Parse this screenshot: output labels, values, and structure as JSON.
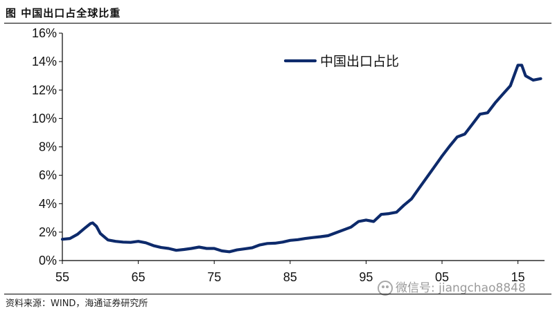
{
  "header": {
    "title": "图   中国出口占全球比重"
  },
  "footer": {
    "source": "资料来源：WIND，海通证券研究所"
  },
  "watermark": {
    "text": "微信号: jiangchao8848",
    "icon": "wechat-icon"
  },
  "chart_data": {
    "type": "line",
    "title": "",
    "xlabel": "",
    "ylabel": "",
    "xlim": [
      1955,
      2018.5
    ],
    "ylim": [
      0,
      16
    ],
    "x_ticks": [
      1955,
      1965,
      1975,
      1985,
      1995,
      2005,
      2015
    ],
    "x_tick_labels": [
      "55",
      "65",
      "75",
      "85",
      "95",
      "05",
      "15"
    ],
    "y_ticks": [
      0,
      2,
      4,
      6,
      8,
      10,
      12,
      14,
      16
    ],
    "y_tick_labels": [
      "0%",
      "2%",
      "4%",
      "6%",
      "8%",
      "10%",
      "12%",
      "14%",
      "16%"
    ],
    "grid": false,
    "legend_position": "top-right",
    "color": "#0d2a6b",
    "series": [
      {
        "name": "中国出口占比",
        "x": [
          1955,
          1956,
          1957,
          1958,
          1958.7,
          1959,
          1959.5,
          1960,
          1961,
          1962,
          1963,
          1964,
          1965,
          1966,
          1967,
          1968,
          1969,
          1970,
          1971,
          1972,
          1973,
          1974,
          1975,
          1976,
          1977,
          1978,
          1979,
          1980,
          1981,
          1982,
          1983,
          1984,
          1985,
          1986,
          1987,
          1988,
          1989,
          1990,
          1991,
          1992,
          1993,
          1994,
          1995,
          1996,
          1997,
          1998,
          1999,
          2000,
          2001,
          2002,
          2003,
          2004,
          2005,
          2006,
          2007,
          2008,
          2009,
          2010,
          2011,
          2012,
          2013,
          2014,
          2015,
          2015.5,
          2016,
          2017,
          2018
        ],
        "y": [
          1.5,
          1.55,
          1.85,
          2.3,
          2.6,
          2.65,
          2.4,
          1.9,
          1.45,
          1.35,
          1.3,
          1.28,
          1.35,
          1.25,
          1.05,
          0.92,
          0.85,
          0.72,
          0.78,
          0.85,
          0.95,
          0.85,
          0.85,
          0.68,
          0.62,
          0.75,
          0.82,
          0.9,
          1.1,
          1.2,
          1.22,
          1.3,
          1.42,
          1.47,
          1.55,
          1.62,
          1.68,
          1.75,
          1.95,
          2.15,
          2.35,
          2.75,
          2.85,
          2.75,
          3.25,
          3.3,
          3.4,
          3.9,
          4.35,
          5.1,
          5.85,
          6.6,
          7.35,
          8.05,
          8.7,
          8.9,
          9.6,
          10.3,
          10.4,
          11.1,
          11.7,
          12.3,
          13.75,
          13.75,
          13.0,
          12.7,
          12.8
        ]
      }
    ]
  }
}
